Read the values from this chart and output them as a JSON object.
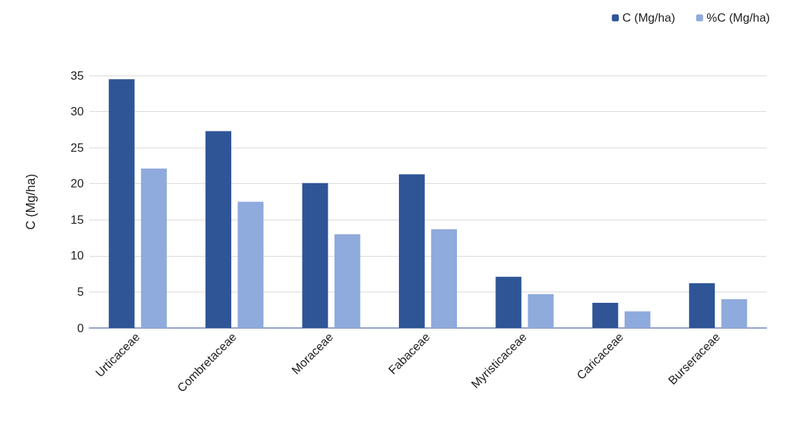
{
  "chart_data": {
    "type": "bar",
    "ylabel": "C (Mg/ha)",
    "categories": [
      "Urticaceae",
      "Combretaceae",
      "Moraceae",
      "Fabaceae",
      "Myristicaceae",
      "Caricaceae",
      "Burseraceae"
    ],
    "series": [
      {
        "name": "C (Mg/ha)",
        "color": "#2f5597",
        "values": [
          34.5,
          27.3,
          20.1,
          21.3,
          7.1,
          3.5,
          6.2
        ]
      },
      {
        "name": "%C (Mg/ha)",
        "color": "#8faadc",
        "values": [
          22.1,
          17.5,
          13.0,
          13.7,
          4.7,
          2.3,
          4.0
        ]
      }
    ],
    "ylim": [
      0,
      35
    ],
    "yticks": [
      0,
      5,
      10,
      15,
      20,
      25,
      30,
      35
    ],
    "grid": "y",
    "legend": "top right"
  }
}
